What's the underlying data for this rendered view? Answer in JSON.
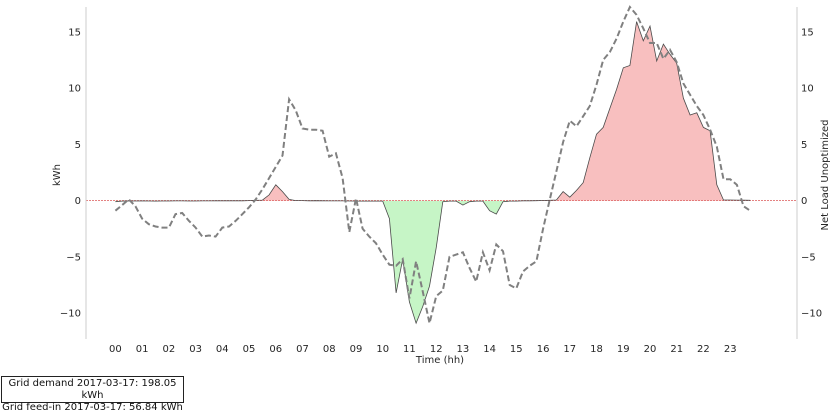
{
  "chart_data": {
    "type": "area",
    "xlabel": "Time (hh)",
    "ylabel": "kWh",
    "ylabel_right": "Net Load Unoptimized",
    "x_tick_labels": [
      "00",
      "01",
      "02",
      "03",
      "04",
      "05",
      "06",
      "07",
      "08",
      "09",
      "10",
      "11",
      "12",
      "13",
      "14",
      "15",
      "16",
      "17",
      "18",
      "19",
      "20",
      "21",
      "22",
      "23"
    ],
    "y_ticks": [
      -10,
      -5,
      0,
      5,
      10,
      15
    ],
    "xlim": [
      -1.1,
      25.5
    ],
    "ylim": [
      -12.3,
      17.2
    ],
    "grid": false,
    "colors": {
      "demand_fill": "#f8bfbf",
      "feedin_fill": "#c6f5c6",
      "dashed_line": "#808080",
      "edge_line": "#4a4a4a",
      "zero_line": "#e07070"
    },
    "net_load": {
      "x": [
        0,
        0.25,
        0.5,
        0.75,
        1,
        1.25,
        1.5,
        1.75,
        2,
        2.25,
        2.5,
        2.75,
        3,
        3.25,
        3.5,
        3.75,
        4,
        4.25,
        4.5,
        4.75,
        5,
        5.25,
        5.5,
        5.75,
        6,
        6.25,
        6.5,
        6.75,
        7,
        7.25,
        7.5,
        7.75,
        8,
        8.25,
        8.5,
        8.75,
        9,
        9.25,
        9.5,
        9.75,
        10,
        10.25,
        10.5,
        10.75,
        11,
        11.25,
        11.5,
        11.75,
        12,
        12.25,
        12.5,
        12.75,
        13,
        13.25,
        13.5,
        13.75,
        14,
        14.25,
        14.5,
        14.75,
        15,
        15.25,
        15.5,
        15.75,
        16,
        16.25,
        16.5,
        16.75,
        17,
        17.25,
        17.5,
        17.75,
        18,
        18.25,
        18.5,
        18.75,
        19,
        19.25,
        19.5,
        19.75,
        20,
        20.25,
        20.5,
        20.75,
        21,
        21.25,
        21.5,
        21.75,
        22,
        22.25,
        22.5,
        22.75,
        23,
        23.25,
        23.5,
        23.75
      ],
      "y": [
        -0.1,
        -0.05,
        -0.03,
        -0.04,
        -0.03,
        -0.04,
        -0.05,
        -0.04,
        -0.04,
        -0.03,
        -0.03,
        -0.04,
        -0.04,
        -0.03,
        -0.03,
        -0.02,
        -0.02,
        -0.02,
        -0.02,
        -0.02,
        0,
        0.02,
        0.04,
        0.5,
        1.4,
        0.8,
        0.1,
        0,
        0,
        -0.02,
        -0.01,
        -0.02,
        -0.03,
        -0.03,
        -0.03,
        -0.04,
        -0.05,
        -0.05,
        -0.05,
        -0.05,
        -0.05,
        -1.6,
        -8.2,
        -5.2,
        -9.0,
        -10.9,
        -9.4,
        -7.6,
        -4.2,
        -0.1,
        -0.05,
        -0.05,
        -0.4,
        -0.1,
        -0.05,
        -0.05,
        -0.9,
        -1.2,
        -0.1,
        -0.05,
        -0.05,
        -0.02,
        -0.02,
        -0.01,
        0.01,
        0.02,
        0.05,
        0.8,
        0.3,
        0.9,
        1.6,
        3.8,
        5.9,
        6.5,
        8.2,
        9.9,
        11.8,
        12.0,
        15.9,
        14.2,
        15.5,
        12.4,
        13.9,
        13.0,
        12.2,
        9.1,
        7.6,
        7.8,
        6.5,
        6.2,
        1.4,
        0.05,
        0.05,
        0.04,
        0.03,
        0.02
      ]
    },
    "net_load_unoptimized": {
      "x": [
        0,
        0.25,
        0.5,
        0.75,
        1,
        1.25,
        1.5,
        1.75,
        2,
        2.25,
        2.5,
        2.75,
        3,
        3.25,
        3.5,
        3.75,
        4,
        4.25,
        4.5,
        4.75,
        5,
        5.25,
        5.5,
        5.75,
        6,
        6.25,
        6.5,
        6.75,
        7,
        7.25,
        7.5,
        7.75,
        8,
        8.25,
        8.5,
        8.75,
        9,
        9.25,
        9.5,
        9.75,
        10,
        10.25,
        10.5,
        10.75,
        11,
        11.25,
        11.5,
        11.75,
        12,
        12.25,
        12.5,
        12.75,
        13,
        13.25,
        13.5,
        13.75,
        14,
        14.25,
        14.5,
        14.75,
        15,
        15.25,
        15.5,
        15.75,
        16,
        16.25,
        16.5,
        16.75,
        17,
        17.25,
        17.5,
        17.75,
        18,
        18.25,
        18.5,
        18.75,
        19,
        19.25,
        19.5,
        19.75,
        20,
        20.25,
        20.5,
        20.75,
        21,
        21.25,
        21.5,
        21.75,
        22,
        22.25,
        22.5,
        22.75,
        23,
        23.25,
        23.5,
        23.75
      ],
      "y": [
        -0.9,
        -0.4,
        0.1,
        -0.5,
        -1.6,
        -2.1,
        -2.3,
        -2.4,
        -2.4,
        -1.2,
        -1.1,
        -1.8,
        -2.4,
        -3.2,
        -3.1,
        -3.2,
        -2.4,
        -2.3,
        -1.8,
        -1.2,
        -0.6,
        0.1,
        1.0,
        2.0,
        3.0,
        4.0,
        9.0,
        8.0,
        6.4,
        6.3,
        6.3,
        6.2,
        3.9,
        4.2,
        2.0,
        -2.8,
        0.2,
        -2.5,
        -3.2,
        -3.8,
        -4.8,
        -5.7,
        -5.8,
        -5.2,
        -8.7,
        -5.4,
        -8.1,
        -10.9,
        -8.5,
        -8.0,
        -5.0,
        -4.8,
        -4.6,
        -6.0,
        -7.2,
        -4.6,
        -6.2,
        -3.9,
        -4.5,
        -7.5,
        -7.8,
        -6.3,
        -5.8,
        -5.4,
        -2.5,
        0.1,
        2.6,
        5.2,
        7.1,
        6.6,
        7.5,
        8.4,
        10.3,
        12.5,
        13.2,
        14.4,
        15.9,
        17.2,
        16.5,
        15.3,
        14.0,
        14.0,
        12.6,
        13.4,
        12.3,
        10.4,
        9.4,
        8.4,
        7.6,
        6.3,
        4.8,
        1.9,
        1.9,
        1.4,
        -0.5,
        -0.9
      ]
    }
  },
  "info_box": {
    "line1": "Grid demand 2017-03-17: 198.05 kWh",
    "line2": "Grid feed-in 2017-03-17: 56.84 kWh"
  }
}
